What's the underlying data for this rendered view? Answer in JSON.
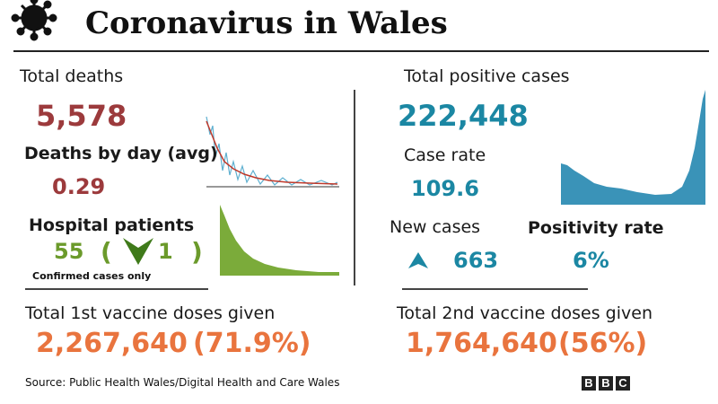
{
  "header": {
    "title": "Coronavirus in Wales"
  },
  "left": {
    "total_deaths": {
      "label": "Total deaths",
      "value": "5,578"
    },
    "deaths_by_day": {
      "label": "Deaths by day (avg)",
      "value": "0.29"
    },
    "hospital_patients": {
      "label": "Hospital patients",
      "value": "55",
      "open": "(",
      "change": "1",
      "close": ")",
      "note": "Confirmed cases only"
    },
    "vaccine": {
      "label": "Total 1st vaccine doses  given",
      "value": "2,267,640",
      "percent": "(71.9%)"
    }
  },
  "right": {
    "total_cases": {
      "label": "Total positive cases",
      "value": "222,448"
    },
    "case_rate": {
      "label": "Case rate",
      "value": "109.6"
    },
    "new_cases": {
      "label": "New  cases",
      "value": "663"
    },
    "positivity": {
      "label": "Positivity rate",
      "value": "6%"
    },
    "vaccine": {
      "label": "Total 2nd vaccine doses given",
      "value": "1,764,640",
      "percent": "(56%)"
    }
  },
  "footer": {
    "source": "Source: Public Health Wales/Digital Health and Care Wales",
    "logo": [
      "B",
      "B",
      "C"
    ]
  }
}
